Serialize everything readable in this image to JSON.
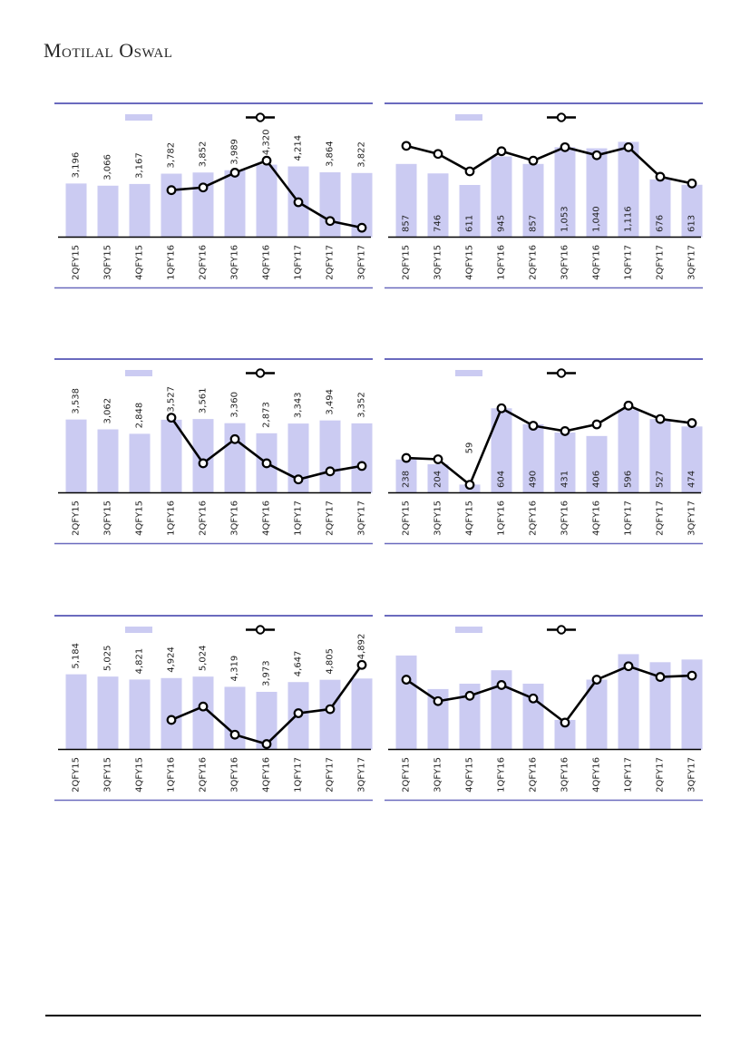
{
  "brand": "Motilal Oswal",
  "colors": {
    "bar": "#CBCBF2",
    "line": "#000000",
    "marker_fill": "#FFFFFF",
    "panel_border": "#6A6ABE",
    "axis": "#000000",
    "label": "#1F1F1F"
  },
  "chart_data": [
    {
      "id": "top-left",
      "type": "bar+line",
      "categories": [
        "2QFY15",
        "3QFY15",
        "4QFY15",
        "1QFY16",
        "2QFY16",
        "3QFY16",
        "4QFY16",
        "1QFY17",
        "2QFY17",
        "3QFY17"
      ],
      "bar_values": [
        3196,
        3066,
        3167,
        3782,
        3852,
        3989,
        4320,
        4214,
        3864,
        3822
      ],
      "bar_label_position": "above",
      "bar_max_pct": 54,
      "line_relative_pct": [
        null,
        null,
        null,
        35,
        37,
        48,
        57,
        26,
        12,
        7
      ],
      "legend": {
        "bar_swatch": true,
        "line_swatch": true
      }
    },
    {
      "id": "top-right",
      "type": "bar+line",
      "categories": [
        "2QFY15",
        "3QFY15",
        "4QFY15",
        "1QFY16",
        "2QFY16",
        "3QFY16",
        "4QFY16",
        "1QFY17",
        "2QFY17",
        "3QFY17"
      ],
      "bar_values": [
        857,
        746,
        611,
        945,
        857,
        1053,
        1040,
        1116,
        676,
        613
      ],
      "bar_label_position": "inside",
      "bar_max_pct": 71,
      "line_relative_pct": [
        68,
        62,
        49,
        64,
        57,
        67,
        61,
        67,
        45,
        40
      ],
      "legend": {
        "bar_swatch": true,
        "line_swatch": true
      }
    },
    {
      "id": "middle-left",
      "type": "bar+line",
      "categories": [
        "2QFY15",
        "3QFY15",
        "4QFY15",
        "1QFY16",
        "2QFY16",
        "3QFY16",
        "4QFY16",
        "1QFY17",
        "2QFY17",
        "3QFY17"
      ],
      "bar_values": [
        3538,
        3062,
        2848,
        3527,
        3561,
        3360,
        2873,
        3343,
        3494,
        3352
      ],
      "bar_label_position": "above",
      "bar_max_pct": 55,
      "line_relative_pct": [
        null,
        null,
        null,
        56,
        22,
        40,
        22,
        10,
        16,
        20
      ],
      "legend": {
        "bar_swatch": true,
        "line_swatch": true
      }
    },
    {
      "id": "middle-right",
      "type": "bar+line",
      "categories": [
        "2QFY15",
        "3QFY15",
        "4QFY15",
        "1QFY16",
        "2QFY16",
        "3QFY16",
        "4QFY16",
        "1QFY17",
        "2QFY17",
        "3QFY17"
      ],
      "bar_values": [
        238,
        204,
        59,
        604,
        490,
        431,
        406,
        596,
        527,
        474
      ],
      "bar_label_position": "inside",
      "bar_max_pct": 63,
      "line_relative_pct": [
        26,
        25,
        6,
        63,
        50,
        46,
        51,
        65,
        55,
        52
      ],
      "legend": {
        "bar_swatch": true,
        "line_swatch": true
      }
    },
    {
      "id": "bottom-left",
      "type": "bar+line",
      "categories": [
        "2QFY15",
        "3QFY15",
        "4QFY15",
        "1QFY16",
        "2QFY16",
        "3QFY16",
        "4QFY16",
        "1QFY17",
        "2QFY17",
        "3QFY17"
      ],
      "bar_values": [
        5184,
        5025,
        4821,
        4924,
        5024,
        4319,
        3973,
        4647,
        4805,
        4892
      ],
      "bar_label_position": "above",
      "bar_max_pct": 56,
      "line_relative_pct": [
        null,
        null,
        null,
        22,
        32,
        11,
        4,
        27,
        30,
        63
      ],
      "legend": {
        "bar_swatch": true,
        "line_swatch": true
      }
    },
    {
      "id": "bottom-right",
      "type": "bar+line",
      "categories": [
        "2QFY15",
        "3QFY15",
        "4QFY15",
        "1QFY16",
        "2QFY16",
        "3QFY16",
        "4QFY16",
        "1QFY17",
        "2QFY17",
        "3QFY17"
      ],
      "bar_values": null,
      "bar_heights_pct": [
        70,
        45,
        49,
        59,
        49,
        22,
        52,
        71,
        65,
        67
      ],
      "bar_label_position": "none",
      "bar_max_pct": 71,
      "line_relative_pct": [
        52,
        36,
        40,
        48,
        38,
        20,
        52,
        62,
        54,
        55
      ],
      "legend": {
        "bar_swatch": true,
        "line_swatch": true
      }
    }
  ]
}
